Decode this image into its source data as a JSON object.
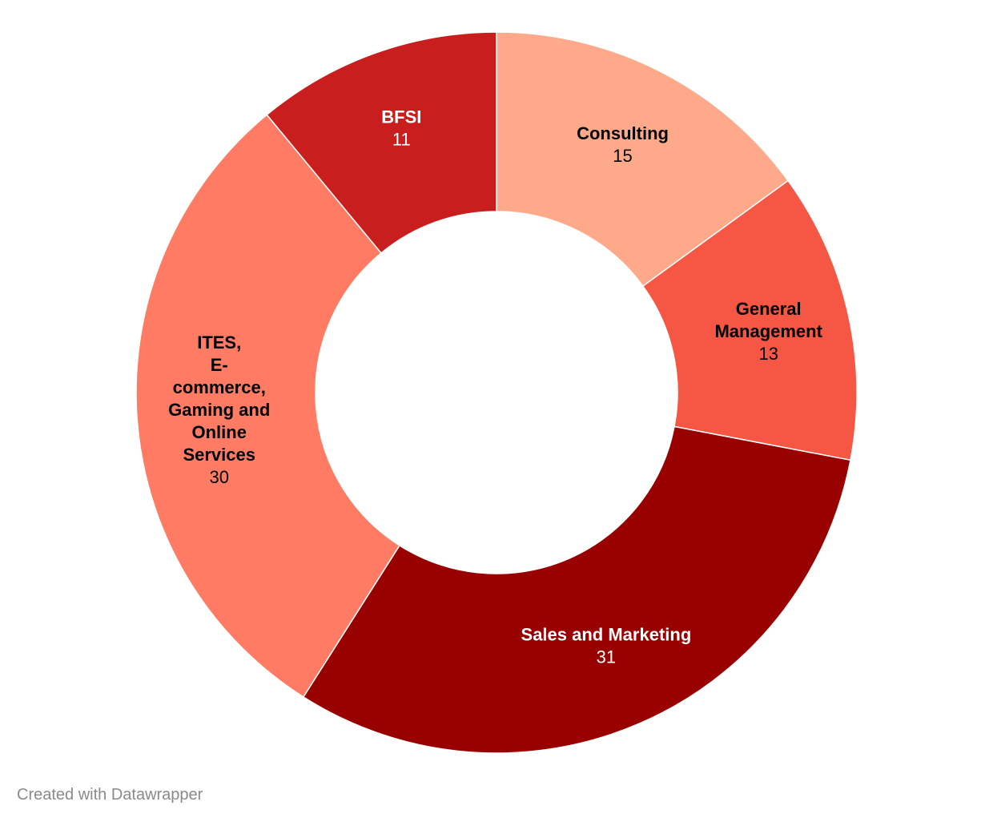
{
  "chart_data": {
    "type": "pie",
    "variant": "donut",
    "title": "",
    "slices": [
      {
        "name": "Consulting",
        "label_lines": [
          "Consulting"
        ],
        "value": 15,
        "color": "#ffa98b",
        "text_color": "#000000"
      },
      {
        "name": "General Management",
        "label_lines": [
          "General",
          "Management"
        ],
        "value": 13,
        "color": "#f65644",
        "text_color": "#000000"
      },
      {
        "name": "Sales and Marketing",
        "label_lines": [
          "Sales and Marketing"
        ],
        "value": 31,
        "color": "#990000",
        "text_color": "#ffffff"
      },
      {
        "name": "ITES, E-commerce, Gaming and Online Services",
        "label_lines": [
          "ITES,",
          "E-",
          "commerce,",
          "Gaming and",
          "Online",
          "Services"
        ],
        "value": 30,
        "color": "#ff7b63",
        "text_color": "#000000"
      },
      {
        "name": "BFSI",
        "label_lines": [
          "BFSI"
        ],
        "value": 11,
        "color": "#c81e1e",
        "text_color": "#ffffff"
      }
    ],
    "start": "12 o'clock",
    "direction": "clockwise",
    "legend": "none"
  },
  "footer": {
    "credit": "Created with Datawrapper"
  }
}
